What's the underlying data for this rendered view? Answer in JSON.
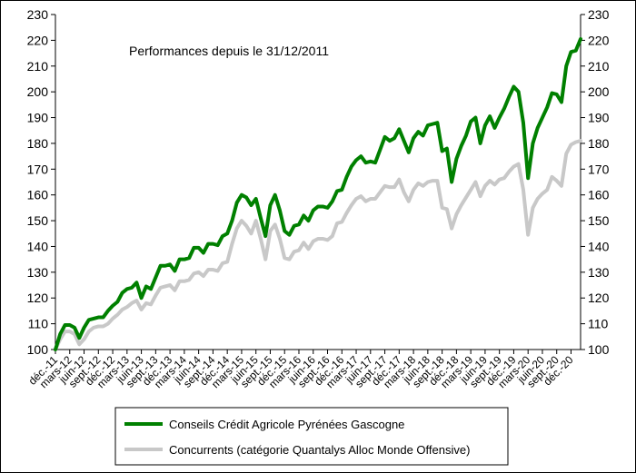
{
  "chart_data": {
    "type": "line",
    "title": "Performances depuis le 31/12/2011",
    "ylim": [
      100,
      230
    ],
    "yticks": [
      100,
      110,
      120,
      130,
      140,
      150,
      160,
      170,
      180,
      190,
      200,
      210,
      220,
      230
    ],
    "grid": false,
    "legend_position": "bottom",
    "x_tick_labels": [
      "déc.-11",
      "mars-12",
      "juin-12",
      "sept.-12",
      "déc.-12",
      "mars-13",
      "juin-13",
      "sept.-13",
      "déc.-13",
      "mars-14",
      "juin-14",
      "sept.-14",
      "déc.-14",
      "mars-15",
      "juin-15",
      "sept.-15",
      "déc.-15",
      "mars-16",
      "juin-16",
      "sept.-16",
      "déc.-16",
      "mars-17",
      "juin-17",
      "sept.-17",
      "déc.-17",
      "mars-18",
      "juin-18",
      "sept.-18",
      "déc.-18",
      "mars-19",
      "juin-19",
      "sept.-19",
      "déc.-19",
      "mars-20",
      "juin-20",
      "sept.-20",
      "déc.-20"
    ],
    "series": [
      {
        "name": "Conseils Crédit Agricole Pyrénées Gascogne",
        "color": "#008000",
        "values": [
          100,
          106,
          109.5,
          109.5,
          108.5,
          104.5,
          108.5,
          111.5,
          112,
          112.5,
          112.5,
          115,
          117,
          118.5,
          122,
          123.5,
          124,
          126,
          120,
          124.5,
          123.5,
          128,
          132.5,
          132.5,
          133,
          130.5,
          135,
          135,
          135.5,
          139.5,
          139.5,
          137.5,
          141,
          141,
          140.5,
          144,
          145,
          150,
          157,
          160,
          159,
          156,
          158.5,
          151,
          144,
          156,
          160,
          154,
          146,
          144.5,
          148,
          148.5,
          152,
          150,
          154,
          155.5,
          155.5,
          155,
          157.5,
          161.5,
          162,
          167,
          171,
          173.5,
          175,
          172.5,
          173,
          172.5,
          177.5,
          182.5,
          181,
          182,
          185.5,
          181,
          176.5,
          182,
          184.5,
          183,
          187,
          187.5,
          188,
          177,
          178,
          165,
          174,
          179,
          183,
          188.5,
          190,
          180,
          187,
          190.5,
          186,
          190,
          193.5,
          198,
          202,
          200,
          188,
          166.5,
          180,
          186,
          190,
          194,
          199.5,
          199,
          196,
          210,
          215.5,
          216,
          220.5
        ]
      },
      {
        "name": "Concurrents (catégorie Quantalys Alloc Monde Offensive)",
        "color": "#c8c8c8",
        "values": [
          100,
          104,
          107,
          107,
          106,
          102,
          104,
          107,
          108.5,
          109,
          109,
          110,
          112,
          113.5,
          115.5,
          116.5,
          118,
          119,
          115.5,
          118,
          117.5,
          121,
          124,
          124.5,
          125,
          123,
          126.5,
          126.5,
          127,
          129.5,
          130,
          128.5,
          131,
          131,
          130.5,
          133.5,
          134,
          141,
          147,
          150,
          148,
          145,
          150,
          143,
          135,
          146,
          148.5,
          143,
          135.5,
          135,
          138,
          138.5,
          141.5,
          139,
          142,
          143,
          143,
          142.5,
          144,
          149,
          149.5,
          153,
          156,
          158.5,
          159.5,
          157.5,
          158.5,
          158.5,
          161,
          163.5,
          163,
          163,
          166,
          161,
          157.5,
          162,
          164.5,
          163.5,
          165,
          165.5,
          165.5,
          155,
          154.5,
          147,
          152.5,
          156,
          159,
          162,
          165,
          159.5,
          163.5,
          165.5,
          164,
          166,
          166.5,
          169,
          171,
          172,
          162,
          144.5,
          155,
          158.5,
          160.5,
          162,
          167,
          165.5,
          163.5,
          176,
          179.5,
          180.5,
          181
        ]
      }
    ]
  }
}
